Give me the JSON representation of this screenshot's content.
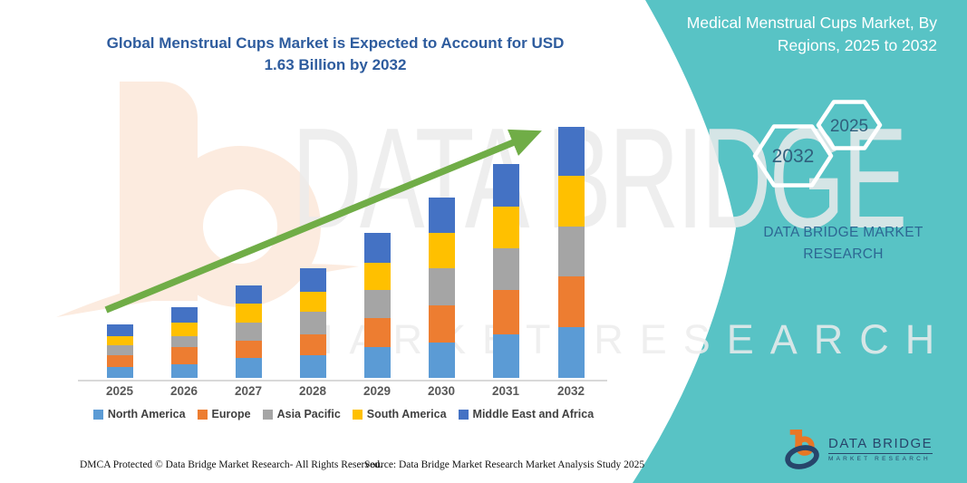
{
  "header": {
    "title": "Global Menstrual Cups Market is Expected to Account for USD 1.63 Billion by 2032"
  },
  "side_panel": {
    "heading": "Medical Menstrual Cups Market, By Regions, 2025 to 2032",
    "hexagon_back_label": "2032",
    "hexagon_front_label": "2025",
    "brand_text": "DATA BRIDGE MARKET RESEARCH",
    "panel_color": "#58C3C5"
  },
  "watermark": {
    "line1": "DATA BRIDGE",
    "line2": "MARKET RESEARCH"
  },
  "chart_data": {
    "type": "bar",
    "stacked": true,
    "title": "Global Menstrual Cups Market is Expected to Account for USD 1.63 Billion by 2032",
    "units": "USD billions (estimated from bar heights; 2032 total = 1.63)",
    "categories": [
      "2025",
      "2026",
      "2027",
      "2028",
      "2029",
      "2030",
      "2031",
      "2032"
    ],
    "series": [
      {
        "name": "North America",
        "color": "#5B9BD5",
        "values": [
          0.07,
          0.09,
          0.13,
          0.15,
          0.2,
          0.23,
          0.28,
          0.33
        ]
      },
      {
        "name": "Europe",
        "color": "#ED7D31",
        "values": [
          0.08,
          0.11,
          0.11,
          0.13,
          0.19,
          0.24,
          0.29,
          0.33
        ]
      },
      {
        "name": "Asia Pacific",
        "color": "#A5A5A5",
        "values": [
          0.06,
          0.07,
          0.12,
          0.15,
          0.18,
          0.24,
          0.27,
          0.32
        ]
      },
      {
        "name": "South America",
        "color": "#FFC000",
        "values": [
          0.06,
          0.09,
          0.12,
          0.13,
          0.18,
          0.23,
          0.27,
          0.33
        ]
      },
      {
        "name": "Middle East and Africa",
        "color": "#4472C4",
        "values": [
          0.08,
          0.1,
          0.12,
          0.15,
          0.19,
          0.23,
          0.28,
          0.32
        ]
      }
    ],
    "totals": [
      0.35,
      0.46,
      0.6,
      0.71,
      0.94,
      1.17,
      1.39,
      1.63
    ],
    "legend_position": "bottom",
    "gridlines": false,
    "y_axis_visible": false,
    "trend_arrow": {
      "present": true,
      "color": "#70AD47",
      "direction": "up-right"
    }
  },
  "footer": {
    "dmca": "DMCA Protected © Data Bridge Market Research-  All Rights Reserved.",
    "source": "Source: Data Bridge Market Research  Market Analysis Study 2025",
    "logo_title": "DATA BRIDGE",
    "logo_subtitle": "MARKET RESEARCH"
  }
}
